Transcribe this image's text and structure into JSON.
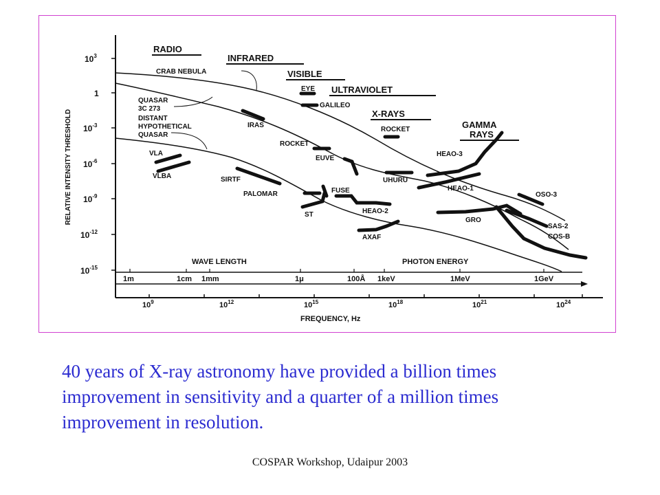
{
  "figure": {
    "y_axis_label": "RELATIVE INTENSITY THRESHOLD",
    "x_axis_label": "FREQUENCY, Hz",
    "y_ticks": [
      {
        "base": "10",
        "exp": "3"
      },
      {
        "base": "1",
        "exp": ""
      },
      {
        "base": "10",
        "exp": "-3"
      },
      {
        "base": "10",
        "exp": "-6"
      },
      {
        "base": "10",
        "exp": "-9"
      },
      {
        "base": "10",
        "exp": "-12"
      },
      {
        "base": "10",
        "exp": "-15"
      }
    ],
    "freq_ticks": [
      {
        "base": "10",
        "exp": "9"
      },
      {
        "base": "10",
        "exp": "12"
      },
      {
        "base": "10",
        "exp": "15"
      },
      {
        "base": "10",
        "exp": "18"
      },
      {
        "base": "10",
        "exp": "21"
      },
      {
        "base": "10",
        "exp": "24"
      }
    ],
    "wavelength_title": "WAVE LENGTH",
    "photon_energy_title": "PHOTON ENERGY",
    "scale_labels": [
      "1m",
      "1cm",
      "1mm",
      "1μ",
      "100Å",
      "1keV",
      "1MeV",
      "1GeV"
    ],
    "bands": [
      "RADIO",
      "INFRARED",
      "VISIBLE",
      "ULTRAVIOLET",
      "X-RAYS",
      "GAMMA",
      "RAYS"
    ],
    "sources": [
      "CRAB NEBULA",
      "QUASAR",
      "3C 273",
      "DISTANT",
      "HYPOTHETICAL",
      "QUASAR"
    ],
    "instruments": [
      "EYE",
      "GALILEO",
      "IRAS",
      "ROCKET",
      "ROCKET",
      "EUVE",
      "VLA",
      "VLBA",
      "SIRTF",
      "PALOMAR",
      "FUSE",
      "ST",
      "HEAO-2",
      "UHURU",
      "HEAO-3",
      "HEAO-1",
      "AXAF",
      "GRO",
      "OSO-3",
      "SAS-2",
      "COS-B"
    ]
  },
  "caption_lines": [
    "40 years of X-ray astronomy have provided a billion times",
    "improvement  in sensitivity and a quarter of a million times",
    "improvement  in resolution."
  ],
  "footer": "COSPAR Workshop, Udaipur 2003"
}
